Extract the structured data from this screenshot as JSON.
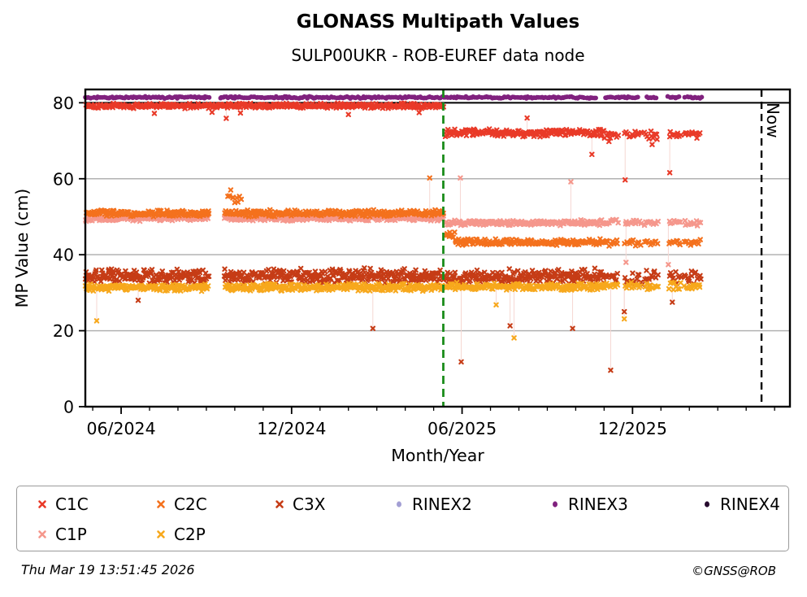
{
  "title": "GLONASS Multipath Values",
  "subtitle": "SULP00UKR - ROB-EUREF data node",
  "footer": {
    "timestamp": "Thu Mar 19 13:51:45 2026",
    "credit": "©GNSS@ROB"
  },
  "legend": {
    "items": [
      {
        "label": "C1C",
        "marker": "x",
        "color": "#e93a28"
      },
      {
        "label": "C2C",
        "marker": "x",
        "color": "#f4711d"
      },
      {
        "label": "C3X",
        "marker": "x",
        "color": "#c63c16"
      },
      {
        "label": "RINEX2",
        "marker": "circle",
        "color": "#a39fd4"
      },
      {
        "label": "RINEX3",
        "marker": "circle",
        "color": "#80217e"
      },
      {
        "label": "RINEX4",
        "marker": "circle",
        "color": "#270b2e"
      },
      {
        "label": "C1P",
        "marker": "x",
        "color": "#f5978c"
      },
      {
        "label": "C2P",
        "marker": "x",
        "color": "#f7a81c"
      }
    ]
  },
  "chart_data": {
    "type": "scatter",
    "title": "GLONASS Multipath Values",
    "subtitle": "SULP00UKR - ROB-EUREF data node",
    "xlabel": "Month/Year",
    "ylabel": "MP Value (cm)",
    "x_axis": {
      "unit": "months relative to 06/2024",
      "min": -1.26,
      "max": 23.54,
      "minor_step": 1,
      "major_ticks": [
        {
          "m": 0,
          "label": "06/2024"
        },
        {
          "m": 6,
          "label": "12/2024"
        },
        {
          "m": 12,
          "label": "06/2025"
        },
        {
          "m": 18,
          "label": "12/2025"
        }
      ]
    },
    "y_axis": {
      "min": 0,
      "max": 83.5,
      "ticks": [
        0,
        20,
        40,
        60,
        80
      ],
      "grid_ticks": [
        20,
        40,
        60
      ],
      "dark_line_at": 80
    },
    "reference_lines": [
      {
        "name": "processing-change",
        "m": 11.34,
        "style": "dashed",
        "color": "#1a8c1a",
        "label": ""
      },
      {
        "name": "now",
        "m": 22.54,
        "style": "dashed",
        "color": "#000000",
        "label": "Now"
      }
    ],
    "data_gap_m": [
      3.09,
      3.63
    ],
    "cluster_ranges": [
      [
        17.03,
        17.46
      ],
      [
        17.74,
        18.31
      ],
      [
        18.43,
        18.86
      ],
      [
        19.29,
        19.71
      ],
      [
        19.83,
        20.4
      ]
    ],
    "series": [
      {
        "name": "C3X",
        "color": "#c63c16",
        "marker": "x",
        "has_gap": true,
        "bands": [
          {
            "m0": -1.26,
            "m1": 11.34,
            "y": 34.4,
            "spread": 2.3,
            "step": 0.026
          },
          {
            "m0": 11.42,
            "m1": 17.0,
            "y": 34.2,
            "spread": 2.3,
            "step": 0.028
          },
          {
            "ranges": "clusters",
            "y": 34.0,
            "spread": 2.4,
            "step": 0.045
          }
        ],
        "outliers": [
          [
            0.6,
            28.0
          ],
          [
            8.86,
            20.6
          ],
          [
            11.97,
            11.8
          ],
          [
            13.69,
            21.3
          ],
          [
            15.89,
            20.6
          ],
          [
            17.23,
            9.6
          ],
          [
            17.71,
            25.0
          ],
          [
            19.4,
            27.5
          ]
        ]
      },
      {
        "name": "C2P",
        "color": "#f7a81c",
        "marker": "x",
        "has_gap": true,
        "bands": [
          {
            "m0": -1.26,
            "m1": 11.34,
            "y": 31.4,
            "spread": 1.15,
            "step": 0.03
          },
          {
            "m0": 11.42,
            "m1": 17.0,
            "y": 31.6,
            "spread": 1.15,
            "step": 0.032
          },
          {
            "ranges": "clusters",
            "y": 31.8,
            "spread": 1.2,
            "step": 0.05
          }
        ],
        "outliers": [
          [
            -0.86,
            22.6
          ],
          [
            13.2,
            26.8
          ],
          [
            13.83,
            18.1
          ],
          [
            17.71,
            23.1
          ]
        ]
      },
      {
        "name": "C1P",
        "color": "#f5978c",
        "marker": "x",
        "has_gap": true,
        "bands": [
          {
            "m0": -1.26,
            "m1": 11.34,
            "y": 49.6,
            "spread": 0.85,
            "step": 0.03
          },
          {
            "m0": 11.42,
            "m1": 17.0,
            "y": 48.4,
            "spread": 0.8,
            "step": 0.032
          },
          {
            "ranges": "clusters",
            "y": 48.5,
            "spread": 0.9,
            "step": 0.05
          }
        ],
        "outliers": [
          [
            11.94,
            60.2
          ],
          [
            15.83,
            59.2
          ],
          [
            17.77,
            38.0
          ],
          [
            19.26,
            37.4
          ]
        ]
      },
      {
        "name": "C2C",
        "color": "#f4711d",
        "marker": "x",
        "has_gap": true,
        "bands": [
          {
            "m0": -1.26,
            "m1": 11.34,
            "y": 50.9,
            "spread": 0.95,
            "step": 0.03
          },
          {
            "m0": 3.76,
            "m1": 4.23,
            "y": 55.3,
            "spread": 2.6,
            "step": 0.05
          },
          {
            "m0": 11.42,
            "m1": 11.75,
            "y": 45.3,
            "spread": 1.2,
            "step": 0.04
          },
          {
            "m0": 11.75,
            "m1": 17.0,
            "y": 43.3,
            "spread": 0.9,
            "step": 0.032
          },
          {
            "ranges": "clusters",
            "y": 43.2,
            "spread": 1.0,
            "step": 0.05
          }
        ],
        "outliers": [
          [
            10.86,
            60.2
          ]
        ]
      },
      {
        "name": "C1C",
        "color": "#e93a28",
        "marker": "x",
        "has_gap": false,
        "bands": [
          {
            "m0": -1.26,
            "m1": 11.34,
            "y": 79.2,
            "spread": 0.75,
            "step": 0.03
          },
          {
            "m0": 11.42,
            "m1": 17.0,
            "y": 72.1,
            "spread": 1.1,
            "step": 0.032
          },
          {
            "ranges": "clusters",
            "y": 71.6,
            "spread": 1.35,
            "step": 0.05
          }
        ],
        "outliers": [
          [
            1.17,
            77.2
          ],
          [
            3.2,
            77.5
          ],
          [
            3.7,
            75.9
          ],
          [
            4.2,
            77.3
          ],
          [
            8.0,
            76.9
          ],
          [
            10.49,
            77.4
          ],
          [
            14.29,
            76.0
          ],
          [
            16.57,
            66.4
          ],
          [
            17.17,
            69.8
          ],
          [
            17.74,
            59.7
          ],
          [
            18.69,
            69.0
          ],
          [
            19.31,
            61.6
          ]
        ]
      },
      {
        "name": "RINEX2",
        "color": "#a39fd4",
        "marker": "circle",
        "has_gap": false,
        "bands": [],
        "outliers": []
      },
      {
        "name": "RINEX3",
        "color": "#80217e",
        "marker": "circle",
        "has_gap": false,
        "bands": [
          {
            "m0": -1.26,
            "m1": 3.06,
            "y": 81.4,
            "spread": 0.3,
            "step": 0.055
          },
          {
            "m0": 3.49,
            "m1": 16.7,
            "y": 81.4,
            "spread": 0.3,
            "step": 0.055
          },
          {
            "m0": 17.03,
            "m1": 17.29,
            "y": 81.4,
            "spread": 0.3,
            "step": 0.055
          },
          {
            "m0": 17.37,
            "m1": 18.11,
            "y": 81.4,
            "spread": 0.3,
            "step": 0.055
          },
          {
            "m0": 18.14,
            "m1": 18.2,
            "y": 81.4,
            "spread": 0.3,
            "step": 0.055
          },
          {
            "m0": 18.51,
            "m1": 18.86,
            "y": 81.4,
            "spread": 0.3,
            "step": 0.055
          },
          {
            "m0": 19.26,
            "m1": 19.66,
            "y": 81.4,
            "spread": 0.3,
            "step": 0.055
          },
          {
            "m0": 19.86,
            "m1": 20.4,
            "y": 81.4,
            "spread": 0.3,
            "step": 0.055
          }
        ],
        "outliers": []
      },
      {
        "name": "RINEX4",
        "color": "#270b2e",
        "marker": "circle",
        "has_gap": false,
        "bands": [],
        "outliers": []
      }
    ]
  }
}
